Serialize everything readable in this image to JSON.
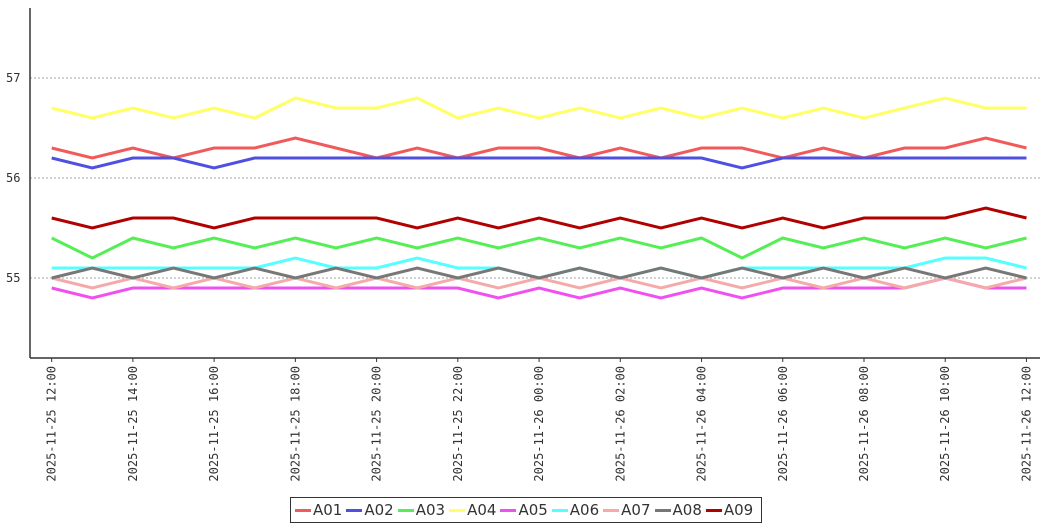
{
  "chart_data": {
    "type": "line",
    "x": [
      "2025-11-25 12:00",
      "2025-11-25 13:00",
      "2025-11-25 14:00",
      "2025-11-25 15:00",
      "2025-11-25 16:00",
      "2025-11-25 17:00",
      "2025-11-25 18:00",
      "2025-11-25 19:00",
      "2025-11-25 20:00",
      "2025-11-25 21:00",
      "2025-11-25 22:00",
      "2025-11-25 23:00",
      "2025-11-26 00:00",
      "2025-11-26 01:00",
      "2025-11-26 02:00",
      "2025-11-26 03:00",
      "2025-11-26 04:00",
      "2025-11-26 05:00",
      "2025-11-26 06:00",
      "2025-11-26 07:00",
      "2025-11-26 08:00",
      "2025-11-26 09:00",
      "2025-11-26 10:00",
      "2025-11-26 11:00",
      "2025-11-26 12:00"
    ],
    "series": [
      {
        "name": "A01",
        "color": "#f05a5a",
        "values": [
          56.3,
          56.2,
          56.3,
          56.2,
          56.3,
          56.3,
          56.4,
          56.3,
          56.2,
          56.3,
          56.2,
          56.3,
          56.3,
          56.2,
          56.3,
          56.2,
          56.3,
          56.3,
          56.2,
          56.3,
          56.2,
          56.3,
          56.3,
          56.4,
          56.3
        ]
      },
      {
        "name": "A02",
        "color": "#5050e0",
        "values": [
          56.2,
          56.1,
          56.2,
          56.2,
          56.1,
          56.2,
          56.2,
          56.2,
          56.2,
          56.2,
          56.2,
          56.2,
          56.2,
          56.2,
          56.2,
          56.2,
          56.2,
          56.1,
          56.2,
          56.2,
          56.2,
          56.2,
          56.2,
          56.2,
          56.2
        ]
      },
      {
        "name": "A03",
        "color": "#55ee55",
        "values": [
          55.4,
          55.2,
          55.4,
          55.3,
          55.4,
          55.3,
          55.4,
          55.3,
          55.4,
          55.3,
          55.4,
          55.3,
          55.4,
          55.3,
          55.4,
          55.3,
          55.4,
          55.2,
          55.4,
          55.3,
          55.4,
          55.3,
          55.4,
          55.3,
          55.4
        ]
      },
      {
        "name": "A04",
        "color": "#ffff66",
        "values": [
          56.7,
          56.6,
          56.7,
          56.6,
          56.7,
          56.6,
          56.8,
          56.7,
          56.7,
          56.8,
          56.6,
          56.7,
          56.6,
          56.7,
          56.6,
          56.7,
          56.6,
          56.7,
          56.6,
          56.7,
          56.6,
          56.7,
          56.8,
          56.7,
          56.7
        ]
      },
      {
        "name": "A05",
        "color": "#f050f0",
        "values": [
          54.9,
          54.8,
          54.9,
          54.9,
          54.9,
          54.9,
          54.9,
          54.9,
          54.9,
          54.9,
          54.9,
          54.8,
          54.9,
          54.8,
          54.9,
          54.8,
          54.9,
          54.8,
          54.9,
          54.9,
          54.9,
          54.9,
          55.0,
          54.9,
          54.9
        ]
      },
      {
        "name": "A06",
        "color": "#55ffff",
        "values": [
          55.1,
          55.1,
          55.1,
          55.1,
          55.1,
          55.1,
          55.2,
          55.1,
          55.1,
          55.2,
          55.1,
          55.1,
          55.0,
          55.1,
          55.0,
          55.1,
          55.0,
          55.1,
          55.1,
          55.1,
          55.1,
          55.1,
          55.2,
          55.2,
          55.1
        ]
      },
      {
        "name": "A07",
        "color": "#f5aaaa",
        "values": [
          55.0,
          54.9,
          55.0,
          54.9,
          55.0,
          54.9,
          55.0,
          54.9,
          55.0,
          54.9,
          55.0,
          54.9,
          55.0,
          54.9,
          55.0,
          54.9,
          55.0,
          54.9,
          55.0,
          54.9,
          55.0,
          54.9,
          55.0,
          54.9,
          55.0
        ]
      },
      {
        "name": "A08",
        "color": "#777777",
        "values": [
          55.0,
          55.1,
          55.0,
          55.1,
          55.0,
          55.1,
          55.0,
          55.1,
          55.0,
          55.1,
          55.0,
          55.1,
          55.0,
          55.1,
          55.0,
          55.1,
          55.0,
          55.1,
          55.0,
          55.1,
          55.0,
          55.1,
          55.0,
          55.1,
          55.0
        ]
      },
      {
        "name": "A09",
        "color": "#b00000",
        "values": [
          55.6,
          55.5,
          55.6,
          55.6,
          55.5,
          55.6,
          55.6,
          55.6,
          55.6,
          55.5,
          55.6,
          55.5,
          55.6,
          55.5,
          55.6,
          55.5,
          55.6,
          55.5,
          55.6,
          55.5,
          55.6,
          55.6,
          55.6,
          55.7,
          55.6
        ]
      }
    ],
    "xlim": [
      "2025-11-25 11:28",
      "2025-11-26 12:20"
    ],
    "xticks": [
      "2025-11-25 12:00",
      "2025-11-25 14:00",
      "2025-11-25 16:00",
      "2025-11-25 18:00",
      "2025-11-25 20:00",
      "2025-11-25 22:00",
      "2025-11-26 00:00",
      "2025-11-26 02:00",
      "2025-11-26 04:00",
      "2025-11-26 06:00",
      "2025-11-26 08:00",
      "2025-11-26 10:00",
      "2025-11-26 12:00"
    ],
    "ylim": [
      54.2,
      57.7
    ],
    "yticks": [
      55,
      56,
      57
    ],
    "grid": true,
    "legend": "bottom"
  }
}
